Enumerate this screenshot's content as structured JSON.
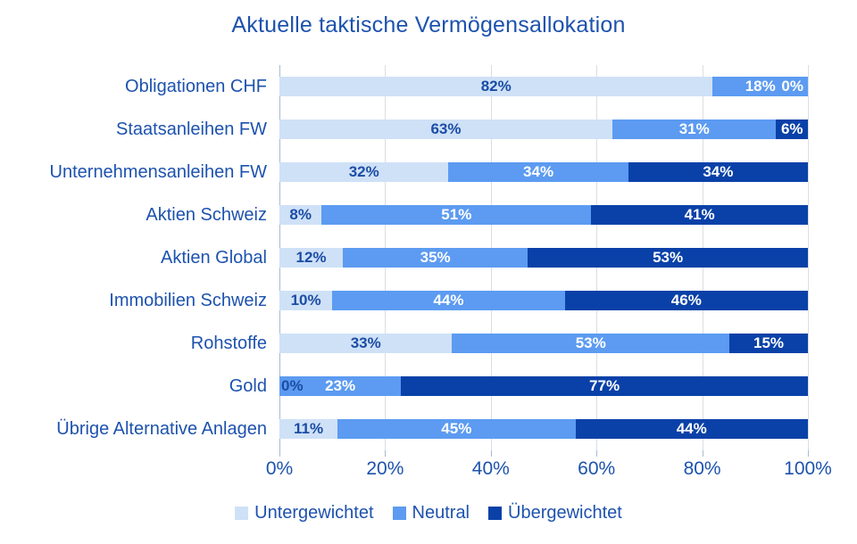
{
  "title": "Aktuelle taktische Vermögensallokation",
  "colors": {
    "title_text": "#1d52ae",
    "category_text": "#1d52ae",
    "axis_text": "#1d52ae",
    "legend_text": "#1d52ae",
    "value_text_dark": "#1b4da5",
    "value_text_light": "#ffffff",
    "gridline": "#dadee4",
    "axis_line": "#a9b9d2",
    "tick_mark": "#a9b9d2",
    "background": "#ffffff"
  },
  "chart_data": {
    "type": "bar",
    "orientation": "horizontal",
    "stacked": true,
    "title": "Aktuelle taktische Vermögensallokation",
    "categories": [
      "Obligationen CHF",
      "Staatsanleihen FW",
      "Unternehmensanleihen FW",
      "Aktien Schweiz",
      "Aktien Global",
      "Immobilien Schweiz",
      "Rohstoffe",
      "Gold",
      "Übrige Alternative Anlagen"
    ],
    "series": [
      {
        "name": "Untergewichtet",
        "color": "#cfe1f7",
        "values": [
          82,
          63,
          32,
          8,
          12,
          10,
          33,
          0,
          11
        ]
      },
      {
        "name": "Neutral",
        "color": "#5c9bf1",
        "values": [
          18,
          31,
          34,
          51,
          35,
          44,
          53,
          23,
          45
        ]
      },
      {
        "name": "Übergewichtet",
        "color": "#0a41a8",
        "values": [
          0,
          6,
          34,
          41,
          53,
          46,
          15,
          77,
          44
        ]
      }
    ],
    "value_suffix": "%",
    "data_labels_visible": true,
    "xlim": [
      0,
      100
    ],
    "x_ticks": [
      {
        "value": 0,
        "label": "0%"
      },
      {
        "value": 20,
        "label": "20%"
      },
      {
        "value": 40,
        "label": "40%"
      },
      {
        "value": 60,
        "label": "60%"
      },
      {
        "value": 80,
        "label": "80%"
      },
      {
        "value": 100,
        "label": "100%"
      }
    ],
    "grid": "vertical",
    "legend_position": "bottom"
  }
}
